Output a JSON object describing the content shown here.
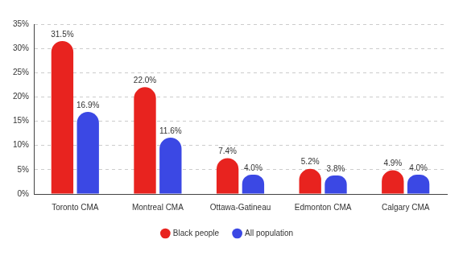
{
  "chart_data": {
    "type": "bar",
    "categories": [
      "Toronto CMA",
      "Montreal CMA",
      "Ottawa-Gatineau",
      "Edmonton CMA",
      "Calgary CMA"
    ],
    "series": [
      {
        "name": "Black people",
        "color": "#e8231f",
        "values": [
          31.5,
          22.0,
          7.4,
          5.2,
          4.9
        ],
        "value_labels": [
          "31.5%",
          "22.0%",
          "7.4%",
          "5.2%",
          "4.9%"
        ]
      },
      {
        "name": "All population",
        "color": "#3b48e4",
        "values": [
          16.9,
          11.6,
          4.0,
          3.8,
          4.0
        ],
        "value_labels": [
          "16.9%",
          "11.6%",
          "4.0%",
          "3.8%",
          "4.0%"
        ]
      }
    ],
    "ylim": [
      0,
      35
    ],
    "yticks": [
      {
        "value": 0,
        "label": "0%"
      },
      {
        "value": 5,
        "label": "5%"
      },
      {
        "value": 10,
        "label": "10%"
      },
      {
        "value": 15,
        "label": "15%"
      },
      {
        "value": 20,
        "label": "20%"
      },
      {
        "value": 25,
        "label": "25%"
      },
      {
        "value": 30,
        "label": "30%"
      },
      {
        "value": 35,
        "label": "35%"
      }
    ],
    "grid": true,
    "legend": "bottom",
    "data_labels": true
  }
}
